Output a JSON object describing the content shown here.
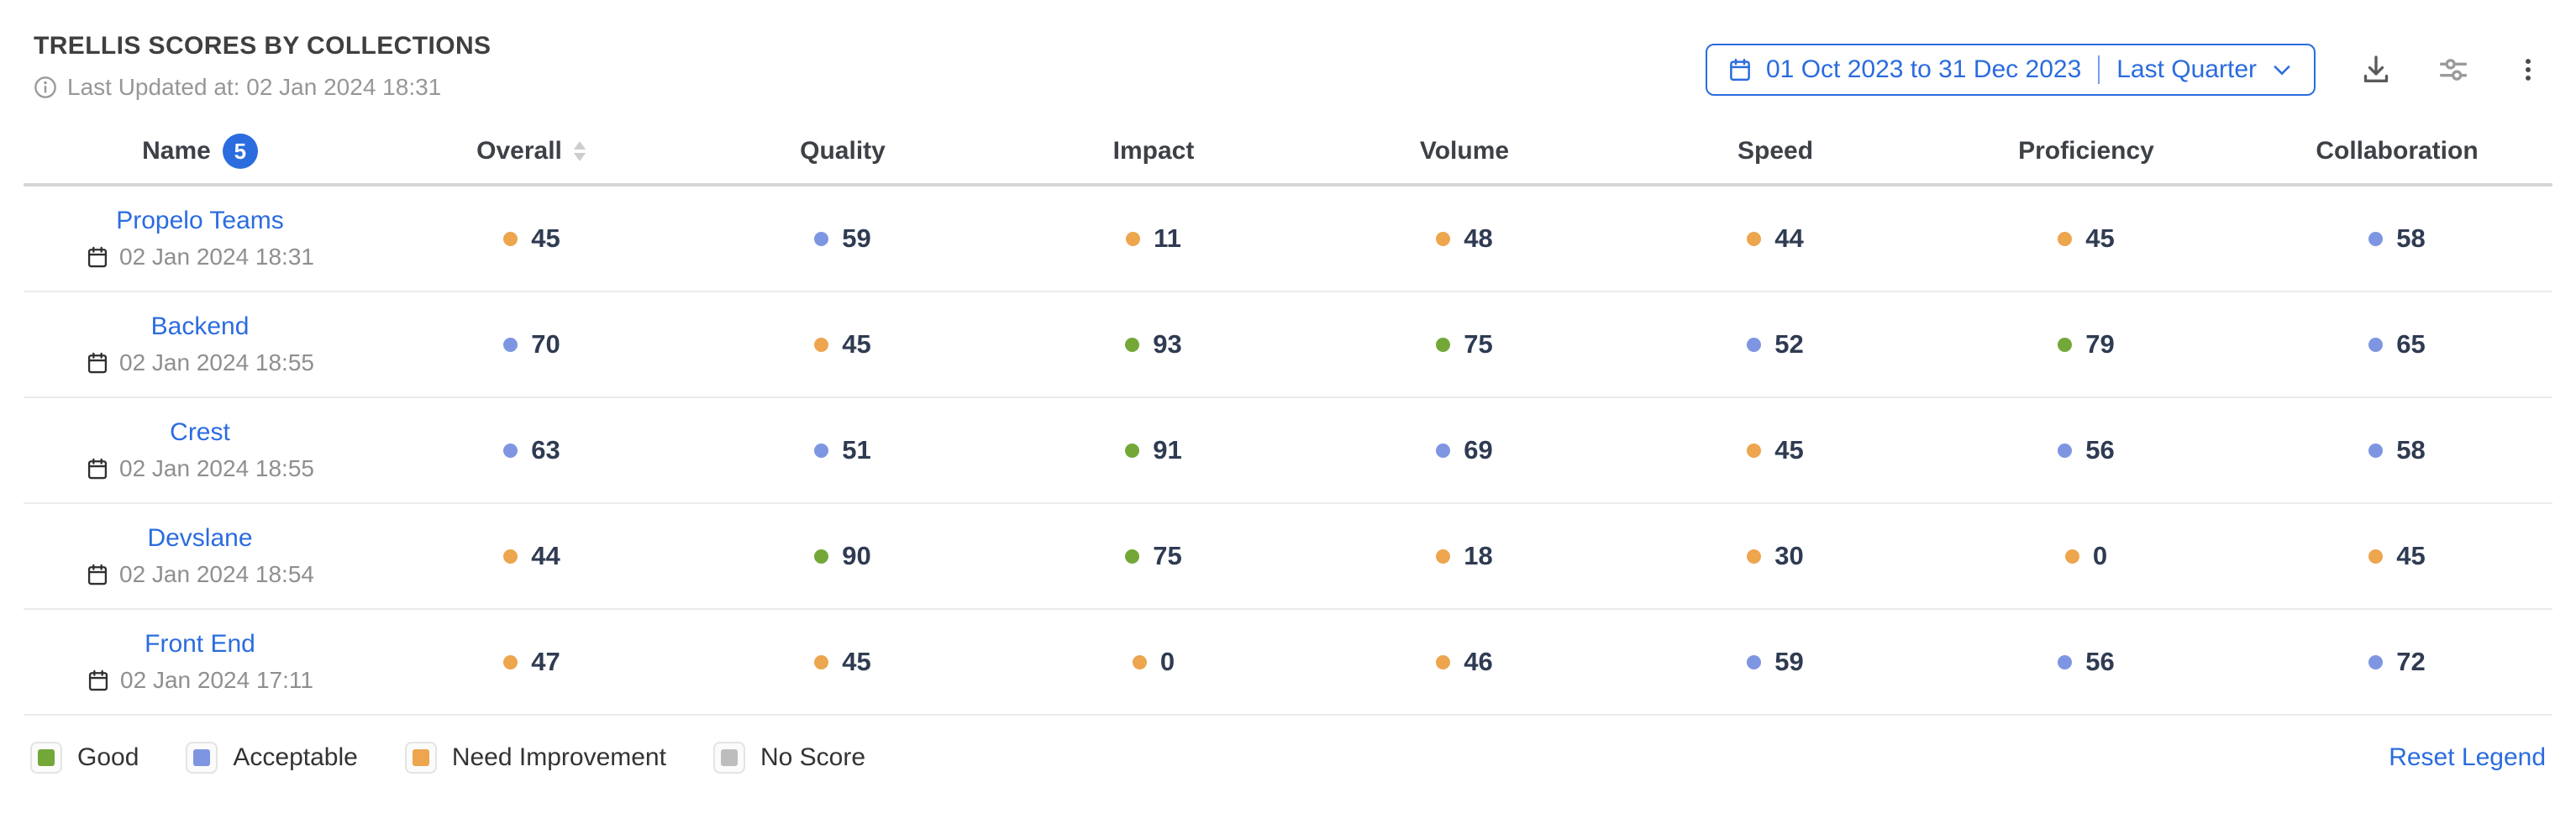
{
  "header": {
    "title": "TRELLIS SCORES BY COLLECTIONS",
    "last_updated": "Last Updated at: 02 Jan 2024 18:31",
    "date_range": {
      "range": "01 Oct 2023 to 31 Dec 2023",
      "preset": "Last Quarter"
    }
  },
  "table": {
    "columns": [
      "Name",
      "Overall",
      "Quality",
      "Impact",
      "Volume",
      "Speed",
      "Proficiency",
      "Collaboration"
    ],
    "name_badge": "5",
    "rows": [
      {
        "name": "Propelo Teams",
        "updated": "02 Jan 2024 18:31",
        "scores": [
          {
            "value": 45,
            "level": "need_improvement"
          },
          {
            "value": 59,
            "level": "acceptable"
          },
          {
            "value": 11,
            "level": "need_improvement"
          },
          {
            "value": 48,
            "level": "need_improvement"
          },
          {
            "value": 44,
            "level": "need_improvement"
          },
          {
            "value": 45,
            "level": "need_improvement"
          },
          {
            "value": 58,
            "level": "acceptable"
          }
        ]
      },
      {
        "name": "Backend",
        "updated": "02 Jan 2024 18:55",
        "scores": [
          {
            "value": 70,
            "level": "acceptable"
          },
          {
            "value": 45,
            "level": "need_improvement"
          },
          {
            "value": 93,
            "level": "good"
          },
          {
            "value": 75,
            "level": "good"
          },
          {
            "value": 52,
            "level": "acceptable"
          },
          {
            "value": 79,
            "level": "good"
          },
          {
            "value": 65,
            "level": "acceptable"
          }
        ]
      },
      {
        "name": "Crest",
        "updated": "02 Jan 2024 18:55",
        "scores": [
          {
            "value": 63,
            "level": "acceptable"
          },
          {
            "value": 51,
            "level": "acceptable"
          },
          {
            "value": 91,
            "level": "good"
          },
          {
            "value": 69,
            "level": "acceptable"
          },
          {
            "value": 45,
            "level": "need_improvement"
          },
          {
            "value": 56,
            "level": "acceptable"
          },
          {
            "value": 58,
            "level": "acceptable"
          }
        ]
      },
      {
        "name": "Devslane",
        "updated": "02 Jan 2024 18:54",
        "scores": [
          {
            "value": 44,
            "level": "need_improvement"
          },
          {
            "value": 90,
            "level": "good"
          },
          {
            "value": 75,
            "level": "good"
          },
          {
            "value": 18,
            "level": "need_improvement"
          },
          {
            "value": 30,
            "level": "need_improvement"
          },
          {
            "value": 0,
            "level": "need_improvement"
          },
          {
            "value": 45,
            "level": "need_improvement"
          }
        ]
      },
      {
        "name": "Front End",
        "updated": "02 Jan 2024 17:11",
        "scores": [
          {
            "value": 47,
            "level": "need_improvement"
          },
          {
            "value": 45,
            "level": "need_improvement"
          },
          {
            "value": 0,
            "level": "need_improvement"
          },
          {
            "value": 46,
            "level": "need_improvement"
          },
          {
            "value": 59,
            "level": "acceptable"
          },
          {
            "value": 56,
            "level": "acceptable"
          },
          {
            "value": 72,
            "level": "acceptable"
          }
        ]
      }
    ]
  },
  "score_colors": {
    "good": "#73a839",
    "acceptable": "#7e96e2",
    "need_improvement": "#eda54e",
    "no_score": "#bdbdbd"
  },
  "legend": {
    "items": [
      {
        "label": "Good",
        "level": "good"
      },
      {
        "label": "Acceptable",
        "level": "acceptable"
      },
      {
        "label": "Need Improvement",
        "level": "need_improvement"
      },
      {
        "label": "No Score",
        "level": "no_score"
      }
    ],
    "reset_label": "Reset Legend"
  }
}
